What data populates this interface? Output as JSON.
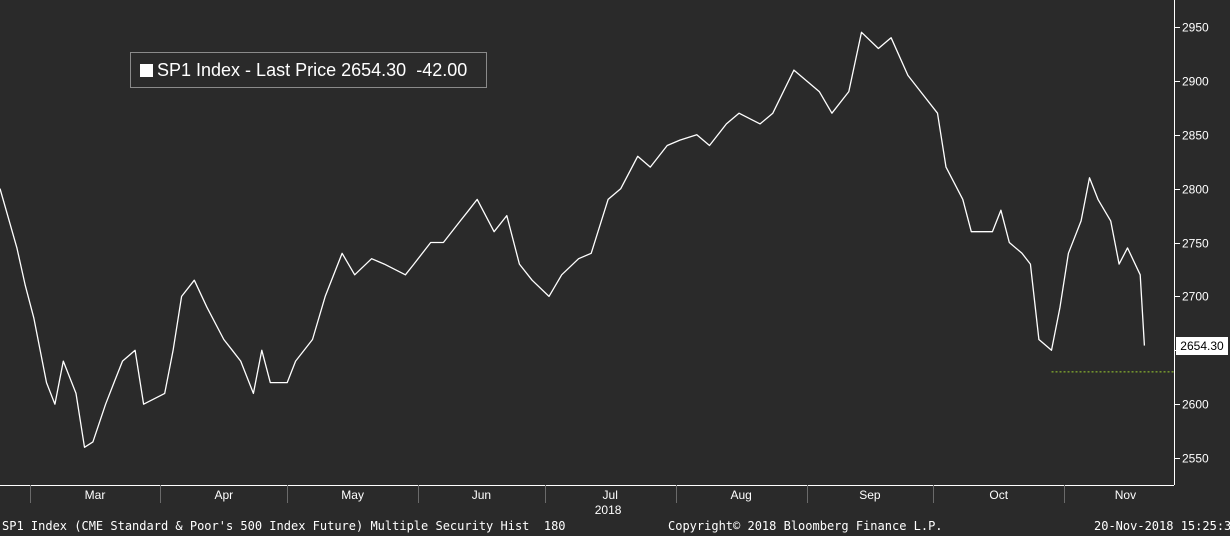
{
  "legend": {
    "series_label": "SP1 Index - Last Price",
    "last_value": "2654.30",
    "change": "-42.00"
  },
  "last_price_tag": "2654.30",
  "footer": {
    "left": "SP1 Index (CME Standard & Poor's 500 Index Future) Multiple Security Hist  180",
    "center": "Copyright© 2018 Bloomberg Finance L.P.",
    "right": "20-Nov-2018 15:25:34"
  },
  "colors": {
    "background": "#2a2a2a",
    "line": "#ffffff",
    "axis": "#ffffff",
    "low_marker": "#9acd32"
  },
  "chart_data": {
    "type": "line",
    "title": "",
    "xlabel": "2018",
    "ylabel": "",
    "ylim": [
      2525,
      2975
    ],
    "yticks": [
      2550,
      2600,
      2650,
      2700,
      2750,
      2800,
      2850,
      2900,
      2950
    ],
    "xlim": [
      "2018-02-22",
      "2018-11-27"
    ],
    "month_labels": [
      {
        "label": "Mar",
        "date": "2018-03-01"
      },
      {
        "label": "Apr",
        "date": "2018-04-01"
      },
      {
        "label": "May",
        "date": "2018-05-01"
      },
      {
        "label": "Jun",
        "date": "2018-06-01"
      },
      {
        "label": "Jul",
        "date": "2018-07-01"
      },
      {
        "label": "Aug",
        "date": "2018-08-01"
      },
      {
        "label": "Sep",
        "date": "2018-09-01"
      },
      {
        "label": "Oct",
        "date": "2018-10-01"
      },
      {
        "label": "Nov",
        "date": "2018-11-01"
      }
    ],
    "year_label": "2018",
    "grid": false,
    "legend_position": "top-left",
    "series": [
      {
        "name": "SP1 Index - Last Price",
        "x": [
          "2018-02-22",
          "2018-02-26",
          "2018-02-28",
          "2018-03-02",
          "2018-03-05",
          "2018-03-07",
          "2018-03-09",
          "2018-03-12",
          "2018-03-14",
          "2018-03-16",
          "2018-03-19",
          "2018-03-21",
          "2018-03-23",
          "2018-03-26",
          "2018-03-28",
          "2018-04-02",
          "2018-04-04",
          "2018-04-06",
          "2018-04-09",
          "2018-04-12",
          "2018-04-16",
          "2018-04-18",
          "2018-04-20",
          "2018-04-23",
          "2018-04-25",
          "2018-04-27",
          "2018-05-01",
          "2018-05-03",
          "2018-05-07",
          "2018-05-10",
          "2018-05-14",
          "2018-05-17",
          "2018-05-21",
          "2018-05-24",
          "2018-05-29",
          "2018-05-31",
          "2018-06-04",
          "2018-06-07",
          "2018-06-11",
          "2018-06-13",
          "2018-06-15",
          "2018-06-19",
          "2018-06-22",
          "2018-06-25",
          "2018-06-28",
          "2018-07-02",
          "2018-07-05",
          "2018-07-09",
          "2018-07-12",
          "2018-07-16",
          "2018-07-19",
          "2018-07-23",
          "2018-07-26",
          "2018-07-30",
          "2018-08-02",
          "2018-08-06",
          "2018-08-09",
          "2018-08-13",
          "2018-08-16",
          "2018-08-21",
          "2018-08-24",
          "2018-08-29",
          "2018-09-04",
          "2018-09-07",
          "2018-09-11",
          "2018-09-14",
          "2018-09-18",
          "2018-09-21",
          "2018-09-25",
          "2018-09-28",
          "2018-10-02",
          "2018-10-04",
          "2018-10-08",
          "2018-10-10",
          "2018-10-11",
          "2018-10-15",
          "2018-10-17",
          "2018-10-19",
          "2018-10-22",
          "2018-10-24",
          "2018-10-26",
          "2018-10-29",
          "2018-10-31",
          "2018-11-02",
          "2018-11-05",
          "2018-11-07",
          "2018-11-09",
          "2018-11-12",
          "2018-11-14",
          "2018-11-16",
          "2018-11-19",
          "2018-11-20"
        ],
        "values": [
          2800,
          2745,
          2710,
          2680,
          2620,
          2600,
          2640,
          2610,
          2560,
          2565,
          2600,
          2620,
          2640,
          2650,
          2600,
          2610,
          2650,
          2700,
          2715,
          2690,
          2660,
          2650,
          2640,
          2610,
          2650,
          2620,
          2620,
          2640,
          2660,
          2700,
          2740,
          2720,
          2735,
          2730,
          2720,
          2730,
          2750,
          2750,
          2770,
          2780,
          2790,
          2760,
          2775,
          2730,
          2715,
          2700,
          2720,
          2735,
          2740,
          2790,
          2800,
          2830,
          2820,
          2840,
          2845,
          2850,
          2840,
          2860,
          2870,
          2860,
          2870,
          2910,
          2890,
          2870,
          2890,
          2945,
          2930,
          2940,
          2905,
          2890,
          2870,
          2820,
          2790,
          2760,
          2760,
          2760,
          2780,
          2750,
          2740,
          2730,
          2660,
          2650,
          2690,
          2740,
          2770,
          2810,
          2790,
          2770,
          2730,
          2745,
          2720,
          2654.3
        ],
        "low_marker": {
          "value": 2630,
          "from": "2018-10-29",
          "to": "2018-11-27"
        }
      }
    ]
  }
}
